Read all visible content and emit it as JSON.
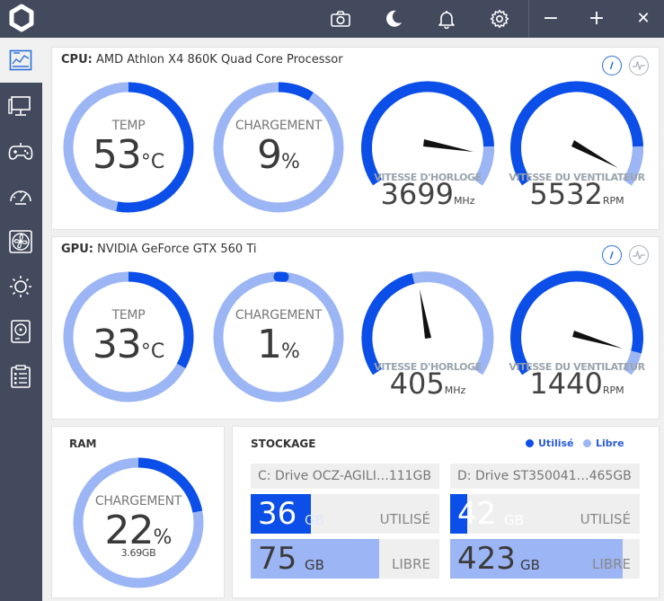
{
  "colors": {
    "accent": "#0b4ee8",
    "light": "#9cb5f4",
    "sidebar": "#434a5d"
  },
  "toolbar": {
    "icons": [
      "camera-icon",
      "moon-icon",
      "bell-icon",
      "gear-icon"
    ],
    "minimize": "−",
    "maximize": "+",
    "close": "✕"
  },
  "sidebar": {
    "items": [
      "dashboard-icon",
      "monitor-icon",
      "gamepad-icon",
      "speedometer-icon",
      "fan-icon",
      "brightness-icon",
      "hard-disk-icon",
      "clipboard-icon"
    ]
  },
  "cpu": {
    "prefix": "CPU:",
    "name": "AMD Athlon X4 860K Quad Core Processor",
    "temp": {
      "label": "TEMP",
      "value": "53",
      "unit": "°C",
      "fraction": 0.53
    },
    "load": {
      "label": "CHARGEMENT",
      "value": "9",
      "unit": "%",
      "fraction": 0.09
    },
    "clock": {
      "label": "VITESSE D'HORLOGE",
      "value": "3699",
      "unit": "MHz"
    },
    "fan": {
      "label": "VITESSE DU VENTILATEUR",
      "value": "5532",
      "unit": "RPM"
    }
  },
  "gpu": {
    "prefix": "GPU:",
    "name": "NVIDIA GeForce GTX 560 Ti",
    "temp": {
      "label": "TEMP",
      "value": "33",
      "unit": "°C",
      "fraction": 0.33
    },
    "load": {
      "label": "CHARGEMENT",
      "value": "1",
      "unit": "%",
      "fraction": 0.01
    },
    "clock": {
      "label": "VITESSE D'HORLOGE",
      "value": "405",
      "unit": "MHz"
    },
    "fan": {
      "label": "VITESSE DU VENTILATEUR",
      "value": "1440",
      "unit": "RPM"
    }
  },
  "ram": {
    "title": "RAM",
    "label": "CHARGEMENT",
    "value": "22",
    "unit": "%",
    "sub": "3.69GB",
    "fraction": 0.22
  },
  "storage": {
    "title": "STOCKAGE",
    "legend_used": "Utilisé",
    "legend_free": "Libre",
    "drives": [
      {
        "name": "C: Drive OCZ-AGILI…111GB",
        "used": "36",
        "free": "75",
        "unit": "GB",
        "used_word": "UTILISÉ",
        "free_word": "LIBRE",
        "used_fraction": 0.32,
        "free_fraction": 0.68
      },
      {
        "name": "D: Drive ST350041…465GB",
        "used": "42",
        "free": "423",
        "unit": "GB",
        "used_word": "UTILISÉ",
        "free_word": "LIBRE",
        "used_fraction": 0.09,
        "free_fraction": 0.91
      }
    ]
  }
}
